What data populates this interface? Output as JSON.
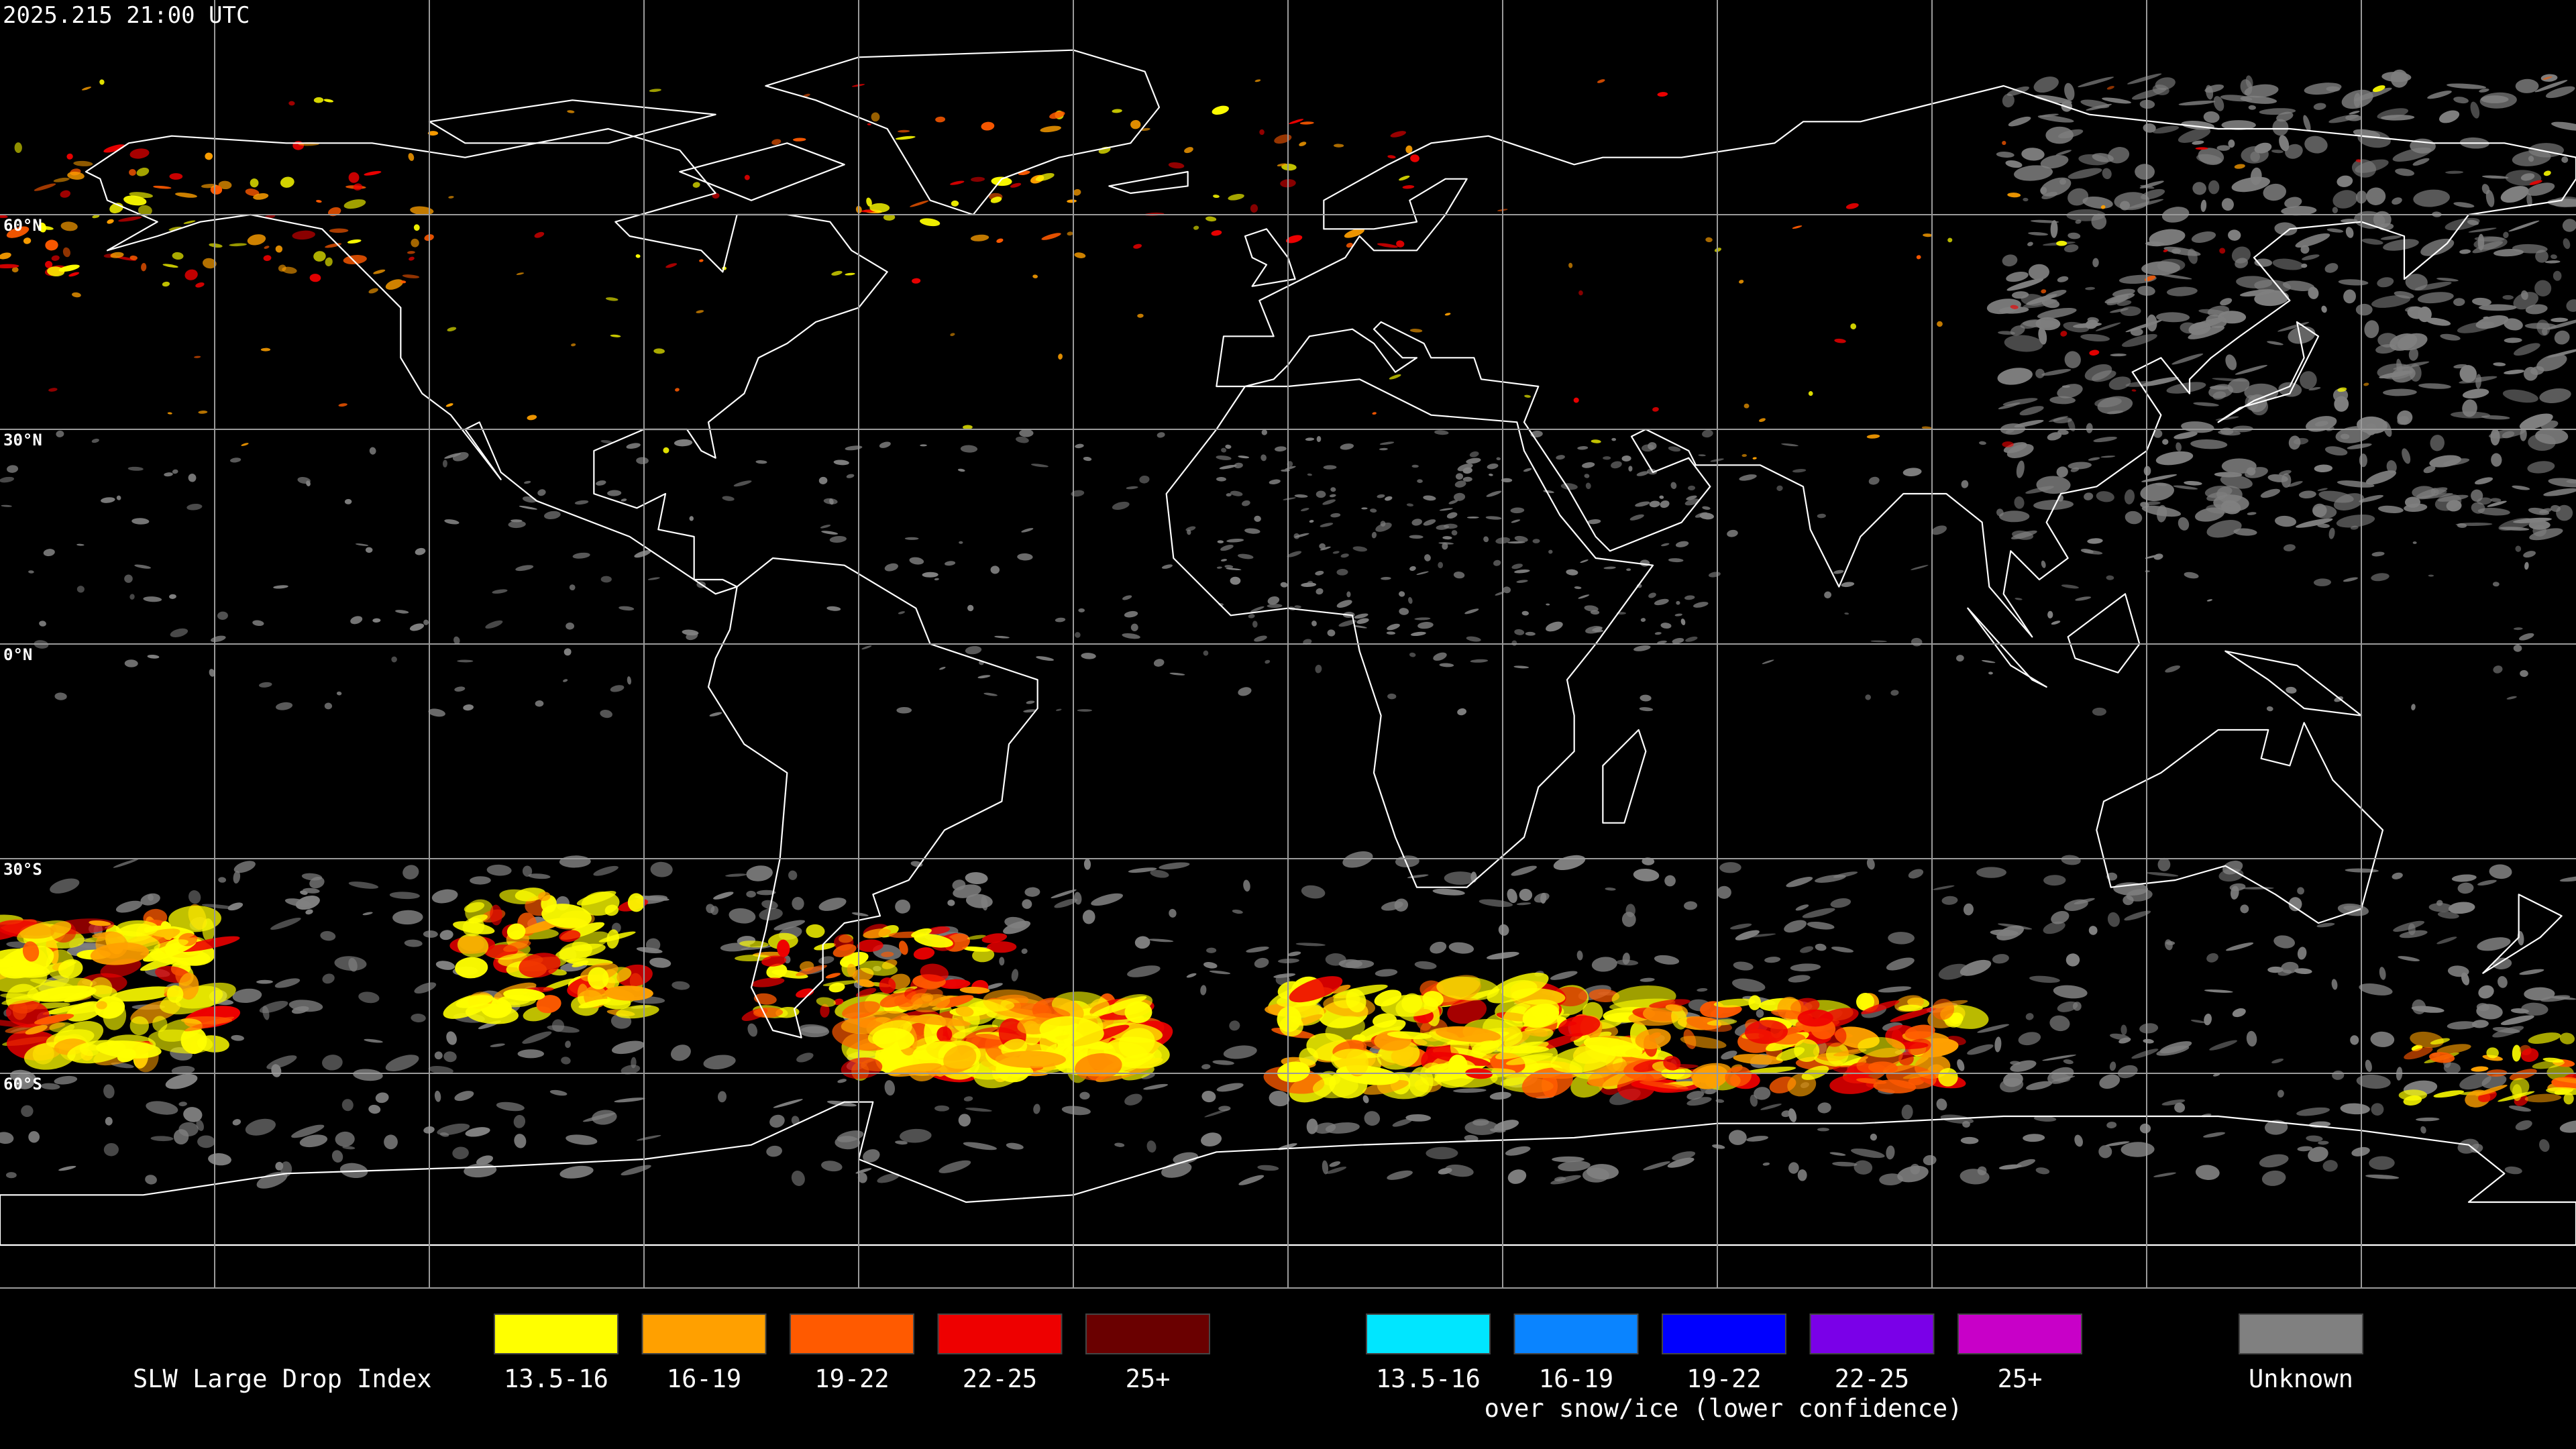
{
  "header": {
    "timestamp": "2025.215 21:00 UTC"
  },
  "map": {
    "lat_labels": [
      "60°N",
      "30°N",
      "0°N",
      "30°S",
      "60°S"
    ]
  },
  "legend": {
    "title": "SLW Large Drop Index",
    "items": [
      {
        "label": "13.5-16",
        "color": "#ffff00"
      },
      {
        "label": "16-19",
        "color": "#ffa000"
      },
      {
        "label": "19-22",
        "color": "#ff5a00"
      },
      {
        "label": "22-25",
        "color": "#ee0000"
      },
      {
        "label": "25+",
        "color": "#6a0000"
      }
    ],
    "snow_items": [
      {
        "label": "13.5-16",
        "color": "#00e6ff"
      },
      {
        "label": "16-19",
        "color": "#0a84ff"
      },
      {
        "label": "19-22",
        "color": "#0000ff"
      },
      {
        "label": "22-25",
        "color": "#7a00e8"
      },
      {
        "label": "25+",
        "color": "#c800c8"
      }
    ],
    "snow_caption": "over snow/ice (lower confidence)",
    "unknown": {
      "label": "Unknown",
      "color": "#808080"
    }
  }
}
